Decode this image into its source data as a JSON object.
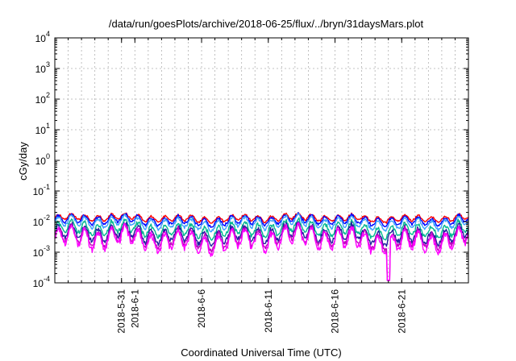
{
  "chart_data": {
    "type": "line",
    "title": "/data/run/goesPlots/archive/2018-06-25/flux/../bryn/31daysMars.plot",
    "xlabel": "Coordinated Universal Time (UTC)",
    "ylabel": "cGy/day",
    "y_scale": "log",
    "ylim": [
      0.0001,
      10000
    ],
    "xlim": [
      "2018-05-26",
      "2018-06-26"
    ],
    "y_ticks": [
      {
        "base": "10",
        "exp": "-4"
      },
      {
        "base": "10",
        "exp": "-3"
      },
      {
        "base": "10",
        "exp": "-2"
      },
      {
        "base": "10",
        "exp": "-1"
      },
      {
        "base": "10",
        "exp": "0"
      },
      {
        "base": "10",
        "exp": "1"
      },
      {
        "base": "10",
        "exp": "2"
      },
      {
        "base": "10",
        "exp": "3"
      },
      {
        "base": "10",
        "exp": "4"
      }
    ],
    "x_ticks": [
      {
        "date": "2018-05-31",
        "label": "2018-5-31"
      },
      {
        "date": "2018-06-01",
        "label": "2018-6-1"
      },
      {
        "date": "2018-06-06",
        "label": "2018-6-6"
      },
      {
        "date": "2018-06-11",
        "label": "2018-6-11"
      },
      {
        "date": "2018-06-16",
        "label": "2018-6-16"
      },
      {
        "date": "2018-06-21",
        "label": "2018-6-21"
      }
    ],
    "grid": true,
    "series_colors": [
      "#ff0000",
      "#0000ff",
      "#3aa0ff",
      "#00b890",
      "#2020a0",
      "#c000c0",
      "#ff00ff"
    ],
    "approx_series_levels": [
      0.013,
      0.011,
      0.009,
      0.0055,
      0.0038,
      0.003,
      0.0025
    ]
  }
}
